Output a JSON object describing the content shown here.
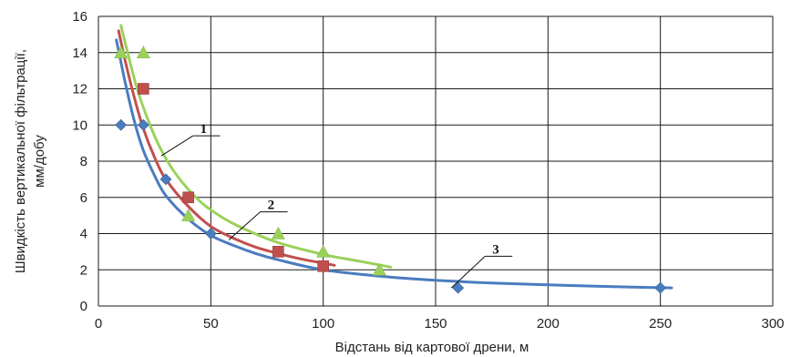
{
  "chart_data": {
    "type": "scatter",
    "xlabel": "Відстань від картової дрени, м",
    "ylabel_lines": [
      "Швидкість вертикальної фільтрації,",
      "мм/добу"
    ],
    "xlim": [
      0,
      300
    ],
    "ylim": [
      0,
      16
    ],
    "xticks": [
      "0",
      "50",
      "100",
      "150",
      "200",
      "250",
      "300"
    ],
    "yticks": [
      "0",
      "2",
      "4",
      "6",
      "8",
      "10",
      "12",
      "14",
      "16"
    ],
    "grid": true,
    "legend": "none",
    "colors": {
      "blue": "#4a7cc0",
      "red": "#c0504d",
      "green": "#9bd15a",
      "grid": "#1a1a1a"
    },
    "series": [
      {
        "label": "3",
        "marker": "diamond",
        "color": "#4a7cc0",
        "points": [
          [
            10,
            10
          ],
          [
            20,
            10
          ],
          [
            30,
            7
          ],
          [
            50,
            4
          ],
          [
            160,
            1
          ],
          [
            250,
            1
          ]
        ],
        "curve": [
          [
            8,
            14.7
          ],
          [
            12,
            12.3
          ],
          [
            16,
            10.2
          ],
          [
            20,
            8.6
          ],
          [
            25,
            7.2
          ],
          [
            30,
            6.1
          ],
          [
            40,
            4.8
          ],
          [
            50,
            3.9
          ],
          [
            60,
            3.35
          ],
          [
            70,
            2.9
          ],
          [
            80,
            2.55
          ],
          [
            100,
            2.0
          ],
          [
            125,
            1.65
          ],
          [
            150,
            1.42
          ],
          [
            175,
            1.27
          ],
          [
            200,
            1.17
          ],
          [
            225,
            1.08
          ],
          [
            255,
            1.0
          ]
        ],
        "label_anchor": [
          157,
          1.0
        ],
        "label_pos": [
          172,
          2.75
        ]
      },
      {
        "label": "2",
        "marker": "square",
        "color": "#c0504d",
        "points": [
          [
            20,
            12
          ],
          [
            40,
            6
          ],
          [
            80,
            3
          ],
          [
            100,
            2.2
          ]
        ],
        "curve": [
          [
            9,
            15.2
          ],
          [
            12,
            13.5
          ],
          [
            16,
            11.5
          ],
          [
            20,
            9.8
          ],
          [
            25,
            8.2
          ],
          [
            30,
            7.0
          ],
          [
            40,
            5.5
          ],
          [
            50,
            4.4
          ],
          [
            60,
            3.75
          ],
          [
            70,
            3.25
          ],
          [
            80,
            2.9
          ],
          [
            90,
            2.6
          ],
          [
            105,
            2.25
          ]
        ],
        "label_anchor": [
          58,
          3.65
        ],
        "label_pos": [
          72,
          5.2
        ]
      },
      {
        "label": "1",
        "marker": "triangle",
        "color": "#9bd15a",
        "points": [
          [
            10,
            14
          ],
          [
            20,
            14
          ],
          [
            40,
            5
          ],
          [
            80,
            4
          ],
          [
            100,
            3
          ],
          [
            125,
            2
          ]
        ],
        "curve": [
          [
            10,
            15.5
          ],
          [
            13,
            14.0
          ],
          [
            17,
            12.1
          ],
          [
            22,
            10.3
          ],
          [
            28,
            8.6
          ],
          [
            35,
            7.2
          ],
          [
            45,
            5.8
          ],
          [
            55,
            4.9
          ],
          [
            65,
            4.25
          ],
          [
            80,
            3.5
          ],
          [
            100,
            2.85
          ],
          [
            115,
            2.5
          ],
          [
            130,
            2.15
          ]
        ],
        "label_anchor": [
          28,
          8.3
        ],
        "label_pos": [
          42,
          9.4
        ]
      }
    ]
  }
}
